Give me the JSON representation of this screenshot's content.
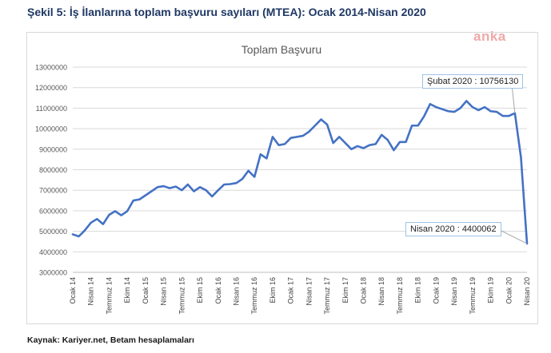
{
  "figure_title": "Şekil 5: İş İlanlarına toplam başvuru sayıları (MTEA): Ocak 2014-Nisan 2020",
  "watermark": "anka",
  "source_note": "Kaynak: Kariyer.net, Betam hesaplamaları",
  "colors": {
    "line": "#4472c4",
    "grid": "#d9d9d9",
    "annotation_border": "#9dc3e6"
  },
  "chart_data": {
    "type": "line",
    "title": "Toplam Başvuru",
    "xlabel": "",
    "ylabel": "",
    "ylim": [
      3000000,
      13000000
    ],
    "yticks": [
      3000000,
      4000000,
      5000000,
      6000000,
      7000000,
      8000000,
      9000000,
      10000000,
      11000000,
      12000000,
      13000000
    ],
    "x_tick_labels": [
      {
        "index": 0,
        "label": "Ocak 14"
      },
      {
        "index": 3,
        "label": "Nisan 14"
      },
      {
        "index": 6,
        "label": "Temmuz 14"
      },
      {
        "index": 9,
        "label": "Ekim 14"
      },
      {
        "index": 12,
        "label": "Ocak 15"
      },
      {
        "index": 15,
        "label": "Nisan 15"
      },
      {
        "index": 18,
        "label": "Temmuz 15"
      },
      {
        "index": 21,
        "label": "Ekim 15"
      },
      {
        "index": 24,
        "label": "Ocak 16"
      },
      {
        "index": 27,
        "label": "Nisan 16"
      },
      {
        "index": 30,
        "label": "Temmuz 16"
      },
      {
        "index": 33,
        "label": "Ekim 16"
      },
      {
        "index": 36,
        "label": "Ocak 17"
      },
      {
        "index": 39,
        "label": "Nisan 17"
      },
      {
        "index": 42,
        "label": "Temmuz 17"
      },
      {
        "index": 45,
        "label": "Ekim 17"
      },
      {
        "index": 48,
        "label": "Ocak 18"
      },
      {
        "index": 51,
        "label": "Nisan 18"
      },
      {
        "index": 54,
        "label": "Temmuz 18"
      },
      {
        "index": 57,
        "label": "Ekim 18"
      },
      {
        "index": 60,
        "label": "Ocak 19"
      },
      {
        "index": 63,
        "label": "Nisan 19"
      },
      {
        "index": 66,
        "label": "Temmuz 19"
      },
      {
        "index": 69,
        "label": "Ekim 19"
      },
      {
        "index": 72,
        "label": "Ocak 20"
      },
      {
        "index": 75,
        "label": "Nisan 20"
      }
    ],
    "series": [
      {
        "values": [
          4850000,
          4750000,
          5050000,
          5420000,
          5600000,
          5350000,
          5800000,
          5980000,
          5780000,
          5980000,
          6500000,
          6550000,
          6750000,
          6950000,
          7150000,
          7200000,
          7100000,
          7180000,
          7000000,
          7280000,
          6950000,
          7150000,
          7000000,
          6700000,
          7000000,
          7280000,
          7300000,
          7350000,
          7550000,
          7950000,
          7650000,
          8750000,
          8550000,
          9600000,
          9200000,
          9250000,
          9550000,
          9600000,
          9650000,
          9850000,
          10150000,
          10450000,
          10200000,
          9300000,
          9600000,
          9300000,
          9000000,
          9150000,
          9050000,
          9200000,
          9250000,
          9700000,
          9450000,
          8950000,
          9350000,
          9350000,
          10150000,
          10150000,
          10600000,
          11200000,
          11050000,
          10950000,
          10850000,
          10820000,
          11000000,
          11350000,
          11050000,
          10900000,
          11050000,
          10850000,
          10820000,
          10620000,
          10620000,
          10756130,
          8600000,
          4400062
        ]
      }
    ],
    "annotations": [
      {
        "index": 73,
        "text": "Şubat 2020 : 10756130"
      },
      {
        "index": 75,
        "text": "Nisan 2020 : 4400062"
      }
    ],
    "grid": true,
    "legend": "none"
  }
}
